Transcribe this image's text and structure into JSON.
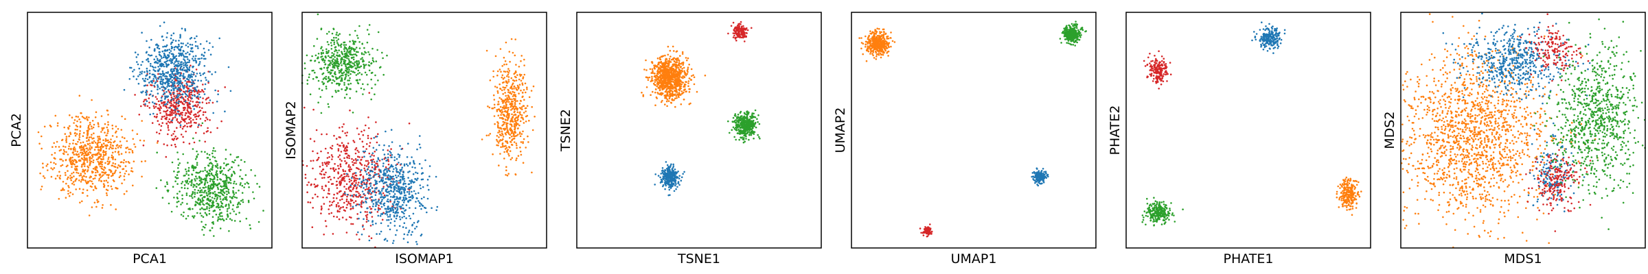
{
  "figure": {
    "background": "#ffffff"
  },
  "colors": {
    "blue": "#1f77b4",
    "orange": "#ff7f0e",
    "green": "#2ca02c",
    "red": "#d62728"
  },
  "chart_data": [
    {
      "type": "scatter",
      "title": "",
      "xlabel": "PCA1",
      "ylabel": "PCA2",
      "xlim": [
        0,
        1
      ],
      "ylim": [
        0,
        1
      ],
      "grid": false,
      "legend": "none",
      "series": [
        {
          "color": "#ff7f0e",
          "clusters": [
            {
              "cx": 0.26,
              "cy": 0.39,
              "sx": 0.085,
              "sy": 0.085,
              "n": 700
            }
          ]
        },
        {
          "color": "#2ca02c",
          "clusters": [
            {
              "cx": 0.75,
              "cy": 0.25,
              "sx": 0.075,
              "sy": 0.075,
              "n": 600
            }
          ]
        },
        {
          "color": "#d62728",
          "clusters": [
            {
              "cx": 0.62,
              "cy": 0.6,
              "sx": 0.06,
              "sy": 0.07,
              "n": 450
            }
          ]
        },
        {
          "color": "#1f77b4",
          "clusters": [
            {
              "cx": 0.6,
              "cy": 0.75,
              "sx": 0.075,
              "sy": 0.075,
              "n": 650
            }
          ]
        }
      ]
    },
    {
      "type": "scatter",
      "title": "",
      "xlabel": "ISOMAP1",
      "ylabel": "ISOMAP2",
      "xlim": [
        0,
        1
      ],
      "ylim": [
        0,
        1
      ],
      "grid": false,
      "legend": "none",
      "series": [
        {
          "color": "#2ca02c",
          "clusters": [
            {
              "cx": 0.16,
              "cy": 0.78,
              "sx": 0.065,
              "sy": 0.065,
              "n": 500
            }
          ]
        },
        {
          "color": "#ff7f0e",
          "clusters": [
            {
              "cx": 0.85,
              "cy": 0.58,
              "sx": 0.035,
              "sy": 0.1,
              "n": 500
            }
          ]
        },
        {
          "color": "#d62728",
          "clusters": [
            {
              "cx": 0.2,
              "cy": 0.3,
              "sx": 0.09,
              "sy": 0.1,
              "n": 550
            }
          ]
        },
        {
          "color": "#1f77b4",
          "clusters": [
            {
              "cx": 0.37,
              "cy": 0.24,
              "sx": 0.07,
              "sy": 0.09,
              "n": 600
            }
          ]
        }
      ]
    },
    {
      "type": "scatter",
      "title": "",
      "xlabel": "TSNE1",
      "ylabel": "TSNE2",
      "xlim": [
        0,
        1
      ],
      "ylim": [
        0,
        1
      ],
      "grid": false,
      "legend": "none",
      "series": [
        {
          "color": "#ff7f0e",
          "clusters": [
            {
              "cx": 0.38,
              "cy": 0.72,
              "sx": 0.036,
              "sy": 0.045,
              "n": 900
            }
          ]
        },
        {
          "color": "#d62728",
          "clusters": [
            {
              "cx": 0.67,
              "cy": 0.92,
              "sx": 0.014,
              "sy": 0.014,
              "n": 150
            }
          ]
        },
        {
          "color": "#2ca02c",
          "clusters": [
            {
              "cx": 0.69,
              "cy": 0.52,
              "sx": 0.023,
              "sy": 0.028,
              "n": 400
            }
          ]
        },
        {
          "color": "#1f77b4",
          "clusters": [
            {
              "cx": 0.38,
              "cy": 0.3,
              "sx": 0.018,
              "sy": 0.022,
              "n": 300
            }
          ]
        }
      ]
    },
    {
      "type": "scatter",
      "title": "",
      "xlabel": "UMAP1",
      "ylabel": "UMAP2",
      "xlim": [
        0,
        1
      ],
      "ylim": [
        0,
        1
      ],
      "grid": false,
      "legend": "none",
      "series": [
        {
          "color": "#ff7f0e",
          "clusters": [
            {
              "cx": 0.11,
              "cy": 0.87,
              "sx": 0.024,
              "sy": 0.024,
              "n": 400
            }
          ]
        },
        {
          "color": "#2ca02c",
          "clusters": [
            {
              "cx": 0.9,
              "cy": 0.91,
              "sx": 0.018,
              "sy": 0.018,
              "n": 300
            }
          ]
        },
        {
          "color": "#1f77b4",
          "clusters": [
            {
              "cx": 0.77,
              "cy": 0.3,
              "sx": 0.013,
              "sy": 0.014,
              "n": 150
            }
          ]
        },
        {
          "color": "#d62728",
          "clusters": [
            {
              "cx": 0.31,
              "cy": 0.07,
              "sx": 0.009,
              "sy": 0.01,
              "n": 80
            }
          ]
        }
      ]
    },
    {
      "type": "scatter",
      "title": "",
      "xlabel": "PHATE1",
      "ylabel": "PHATE2",
      "xlim": [
        0,
        1
      ],
      "ylim": [
        0,
        1
      ],
      "grid": false,
      "legend": "none",
      "series": [
        {
          "color": "#1f77b4",
          "clusters": [
            {
              "cx": 0.59,
              "cy": 0.89,
              "sx": 0.025,
              "sy": 0.022,
              "n": 220
            }
          ]
        },
        {
          "color": "#d62728",
          "clusters": [
            {
              "cx": 0.13,
              "cy": 0.75,
              "sx": 0.02,
              "sy": 0.025,
              "n": 180
            }
          ]
        },
        {
          "color": "#2ca02c",
          "clusters": [
            {
              "cx": 0.13,
              "cy": 0.15,
              "sx": 0.025,
              "sy": 0.022,
              "n": 260
            }
          ]
        },
        {
          "color": "#ff7f0e",
          "clusters": [
            {
              "cx": 0.91,
              "cy": 0.23,
              "sx": 0.02,
              "sy": 0.03,
              "n": 240
            }
          ]
        }
      ]
    },
    {
      "type": "scatter",
      "title": "",
      "xlabel": "MDS1",
      "ylabel": "MDS2",
      "xlim": [
        0,
        1
      ],
      "ylim": [
        0,
        1
      ],
      "grid": false,
      "legend": "none",
      "series": [
        {
          "color": "#ff7f0e",
          "clusters": [
            {
              "cx": 0.3,
              "cy": 0.47,
              "sx": 0.15,
              "sy": 0.17,
              "n": 1500
            }
          ]
        },
        {
          "color": "#1f77b4",
          "clusters": [
            {
              "cx": 0.46,
              "cy": 0.8,
              "sx": 0.1,
              "sy": 0.07,
              "n": 500
            },
            {
              "cx": 0.62,
              "cy": 0.32,
              "sx": 0.04,
              "sy": 0.07,
              "n": 160
            }
          ]
        },
        {
          "color": "#d62728",
          "clusters": [
            {
              "cx": 0.63,
              "cy": 0.84,
              "sx": 0.05,
              "sy": 0.05,
              "n": 160
            },
            {
              "cx": 0.64,
              "cy": 0.28,
              "sx": 0.05,
              "sy": 0.06,
              "n": 200
            }
          ]
        },
        {
          "color": "#2ca02c",
          "clusters": [
            {
              "cx": 0.8,
              "cy": 0.55,
              "sx": 0.09,
              "sy": 0.15,
              "n": 800
            }
          ]
        }
      ]
    }
  ]
}
